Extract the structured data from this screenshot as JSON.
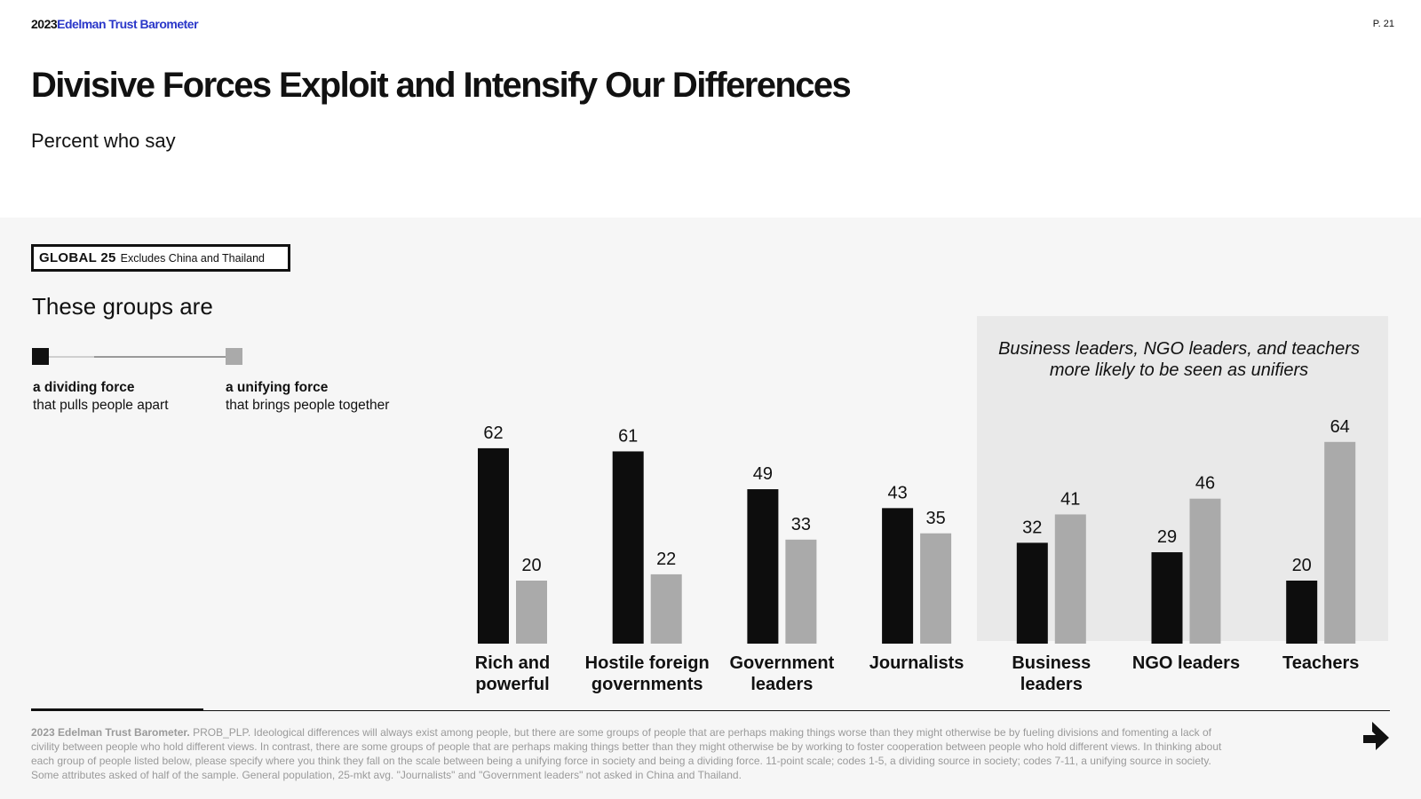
{
  "header": {
    "brand_year": "2023",
    "brand_name": "Edelman Trust Barometer",
    "page_number": "P. 21"
  },
  "title": "Divisive Forces Exploit and Intensify Our Differences",
  "subtitle": "Percent who say",
  "scope": {
    "label": "GLOBAL 25",
    "note": "Excludes China and Thailand"
  },
  "groups_label": "These groups are",
  "legend": {
    "dividing": {
      "label": "a dividing force",
      "desc": "that pulls people apart",
      "color": "#0d0d0d"
    },
    "unifying": {
      "label": "a unifying force",
      "desc": "that brings people together",
      "color": "#aaaaaa"
    }
  },
  "highlight_text": "Business leaders, NGO leaders, and teachers more likely to be seen as unifiers",
  "chart_data": {
    "type": "bar",
    "categories": [
      "Rich and powerful",
      "Hostile foreign governments",
      "Government leaders",
      "Journalists",
      "Business leaders",
      "NGO leaders",
      "Teachers"
    ],
    "series": [
      {
        "name": "a dividing force",
        "color": "#0d0d0d",
        "values": [
          62,
          61,
          49,
          43,
          32,
          29,
          20
        ]
      },
      {
        "name": "a unifying force",
        "color": "#aaaaaa",
        "values": [
          20,
          22,
          33,
          35,
          41,
          46,
          64
        ]
      }
    ],
    "ylim": [
      0,
      100
    ],
    "grid": false,
    "highlighted_categories": [
      "Business leaders",
      "NGO leaders",
      "Teachers"
    ]
  },
  "footnote": {
    "source": "2023 Edelman Trust Barometer.",
    "text": "PROB_PLP. Ideological differences will always exist among people, but there are some groups of people that are perhaps making things worse than they might otherwise be by fueling divisions and fomenting a lack of civility between people who hold different views. In contrast, there are some groups of people that are perhaps making things better than they might otherwise be by working to foster cooperation between people who hold different views. In thinking about each group of people listed below, please specify where you think they fall on the scale between being a unifying force in society and being a dividing force. 11-point scale; codes 1-5, a dividing source in society; codes 7-11, a unifying source in society. Some attributes asked of half of the sample. General population, 25-mkt avg. \"Journalists\" and \"Government leaders\" not asked in China and Thailand."
  }
}
